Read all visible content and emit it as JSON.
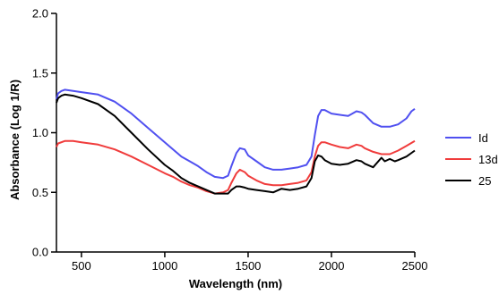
{
  "chart_data": {
    "type": "line",
    "title": "",
    "xlabel": "Wavelength (nm)",
    "ylabel": "Absorbance (Log 1/R)",
    "xlim": [
      350,
      2500
    ],
    "ylim": [
      0.0,
      2.0
    ],
    "xticks": [
      500,
      1000,
      1500,
      2000,
      2500
    ],
    "yticks": [
      0.0,
      0.5,
      1.0,
      1.5,
      2.0
    ],
    "x_tick_labels": [
      "500",
      "1000",
      "1500",
      "2000",
      "2500"
    ],
    "y_tick_labels": [
      "0.0",
      "0.5",
      "1.0",
      "1.5",
      "2.0"
    ],
    "grid": false,
    "legend_position": "right",
    "series": [
      {
        "name": "Id",
        "color": "#5050f0",
        "points": [
          [
            350,
            1.28
          ],
          [
            360,
            1.33
          ],
          [
            380,
            1.35
          ],
          [
            400,
            1.36
          ],
          [
            450,
            1.35
          ],
          [
            500,
            1.34
          ],
          [
            600,
            1.32
          ],
          [
            700,
            1.26
          ],
          [
            800,
            1.16
          ],
          [
            900,
            1.04
          ],
          [
            1000,
            0.92
          ],
          [
            1050,
            0.86
          ],
          [
            1100,
            0.8
          ],
          [
            1150,
            0.76
          ],
          [
            1200,
            0.72
          ],
          [
            1250,
            0.67
          ],
          [
            1300,
            0.63
          ],
          [
            1350,
            0.62
          ],
          [
            1380,
            0.64
          ],
          [
            1400,
            0.72
          ],
          [
            1430,
            0.83
          ],
          [
            1450,
            0.87
          ],
          [
            1480,
            0.86
          ],
          [
            1500,
            0.81
          ],
          [
            1550,
            0.76
          ],
          [
            1600,
            0.71
          ],
          [
            1650,
            0.69
          ],
          [
            1700,
            0.69
          ],
          [
            1750,
            0.7
          ],
          [
            1800,
            0.71
          ],
          [
            1850,
            0.73
          ],
          [
            1880,
            0.8
          ],
          [
            1900,
            0.98
          ],
          [
            1920,
            1.14
          ],
          [
            1940,
            1.19
          ],
          [
            1960,
            1.19
          ],
          [
            2000,
            1.16
          ],
          [
            2050,
            1.15
          ],
          [
            2100,
            1.14
          ],
          [
            2150,
            1.18
          ],
          [
            2180,
            1.17
          ],
          [
            2200,
            1.15
          ],
          [
            2250,
            1.08
          ],
          [
            2300,
            1.05
          ],
          [
            2350,
            1.05
          ],
          [
            2400,
            1.07
          ],
          [
            2450,
            1.12
          ],
          [
            2480,
            1.18
          ],
          [
            2500,
            1.2
          ]
        ]
      },
      {
        "name": "13d",
        "color": "#f03c3c",
        "points": [
          [
            350,
            0.88
          ],
          [
            360,
            0.91
          ],
          [
            400,
            0.93
          ],
          [
            450,
            0.93
          ],
          [
            500,
            0.92
          ],
          [
            600,
            0.9
          ],
          [
            700,
            0.86
          ],
          [
            800,
            0.8
          ],
          [
            900,
            0.73
          ],
          [
            1000,
            0.66
          ],
          [
            1050,
            0.63
          ],
          [
            1100,
            0.59
          ],
          [
            1150,
            0.56
          ],
          [
            1200,
            0.54
          ],
          [
            1250,
            0.51
          ],
          [
            1300,
            0.49
          ],
          [
            1350,
            0.5
          ],
          [
            1380,
            0.52
          ],
          [
            1400,
            0.58
          ],
          [
            1430,
            0.66
          ],
          [
            1450,
            0.69
          ],
          [
            1480,
            0.67
          ],
          [
            1500,
            0.64
          ],
          [
            1550,
            0.6
          ],
          [
            1600,
            0.57
          ],
          [
            1650,
            0.56
          ],
          [
            1700,
            0.56
          ],
          [
            1750,
            0.57
          ],
          [
            1800,
            0.58
          ],
          [
            1850,
            0.6
          ],
          [
            1880,
            0.67
          ],
          [
            1900,
            0.8
          ],
          [
            1920,
            0.89
          ],
          [
            1940,
            0.92
          ],
          [
            1960,
            0.92
          ],
          [
            2000,
            0.9
          ],
          [
            2050,
            0.88
          ],
          [
            2100,
            0.87
          ],
          [
            2150,
            0.9
          ],
          [
            2180,
            0.89
          ],
          [
            2200,
            0.87
          ],
          [
            2250,
            0.84
          ],
          [
            2300,
            0.82
          ],
          [
            2350,
            0.82
          ],
          [
            2400,
            0.85
          ],
          [
            2450,
            0.89
          ],
          [
            2500,
            0.93
          ]
        ]
      },
      {
        "name": "25",
        "color": "#000000",
        "points": [
          [
            350,
            1.25
          ],
          [
            360,
            1.29
          ],
          [
            380,
            1.31
          ],
          [
            400,
            1.32
          ],
          [
            450,
            1.31
          ],
          [
            500,
            1.29
          ],
          [
            600,
            1.24
          ],
          [
            700,
            1.14
          ],
          [
            800,
            1.0
          ],
          [
            900,
            0.86
          ],
          [
            1000,
            0.73
          ],
          [
            1050,
            0.68
          ],
          [
            1100,
            0.62
          ],
          [
            1150,
            0.58
          ],
          [
            1200,
            0.55
          ],
          [
            1250,
            0.52
          ],
          [
            1300,
            0.49
          ],
          [
            1350,
            0.49
          ],
          [
            1380,
            0.49
          ],
          [
            1400,
            0.52
          ],
          [
            1430,
            0.55
          ],
          [
            1450,
            0.55
          ],
          [
            1480,
            0.54
          ],
          [
            1500,
            0.53
          ],
          [
            1550,
            0.52
          ],
          [
            1600,
            0.51
          ],
          [
            1650,
            0.5
          ],
          [
            1700,
            0.53
          ],
          [
            1750,
            0.52
          ],
          [
            1800,
            0.53
          ],
          [
            1850,
            0.55
          ],
          [
            1880,
            0.62
          ],
          [
            1900,
            0.76
          ],
          [
            1920,
            0.81
          ],
          [
            1940,
            0.8
          ],
          [
            1960,
            0.77
          ],
          [
            2000,
            0.74
          ],
          [
            2050,
            0.73
          ],
          [
            2100,
            0.74
          ],
          [
            2150,
            0.77
          ],
          [
            2180,
            0.76
          ],
          [
            2200,
            0.74
          ],
          [
            2250,
            0.71
          ],
          [
            2300,
            0.79
          ],
          [
            2320,
            0.76
          ],
          [
            2350,
            0.78
          ],
          [
            2380,
            0.76
          ],
          [
            2400,
            0.77
          ],
          [
            2450,
            0.8
          ],
          [
            2500,
            0.85
          ]
        ]
      }
    ]
  }
}
